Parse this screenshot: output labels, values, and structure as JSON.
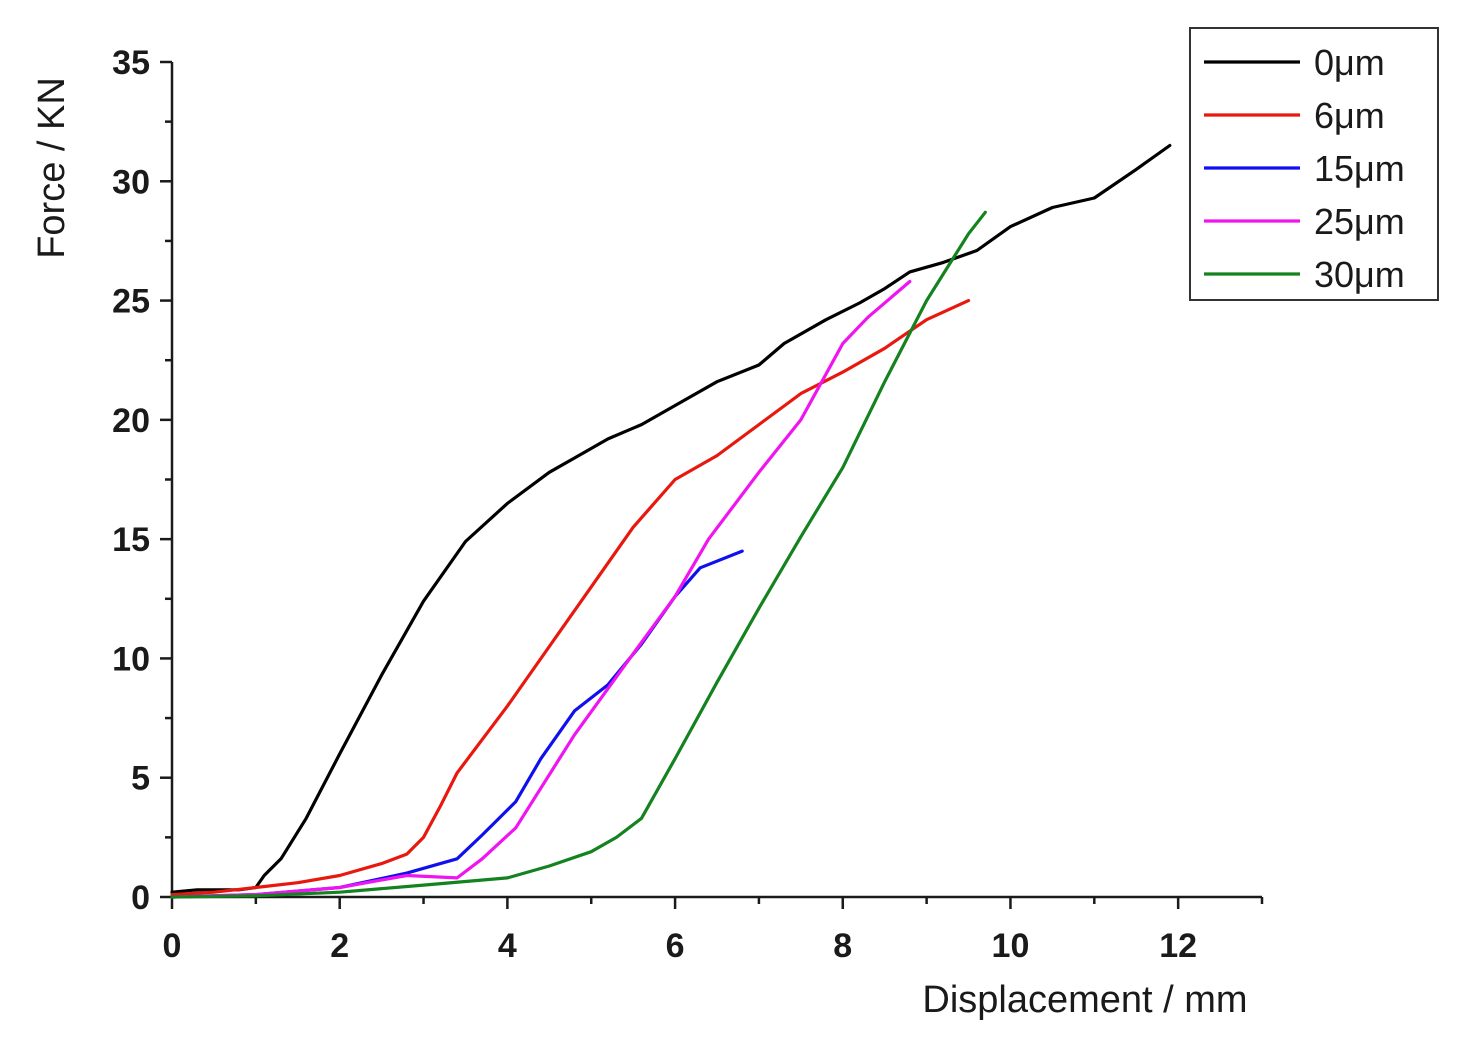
{
  "chart_data": {
    "type": "line",
    "title": "",
    "xlabel": "Displacement / mm",
    "ylabel": "Force / KN",
    "xlim": [
      0,
      13
    ],
    "ylim": [
      0,
      35
    ],
    "xticks": [
      0,
      2,
      4,
      6,
      8,
      10,
      12
    ],
    "yticks": [
      0,
      5,
      10,
      15,
      20,
      25,
      30,
      35
    ],
    "grid": false,
    "legend_position": "top-right",
    "series": [
      {
        "name": "0μm",
        "color": "#000000",
        "x": [
          0,
          0.3,
          0.8,
          1.0,
          1.1,
          1.3,
          1.6,
          2.0,
          2.5,
          3.0,
          3.5,
          4.0,
          4.5,
          4.8,
          5.2,
          5.6,
          6.0,
          6.5,
          7.0,
          7.3,
          7.8,
          8.2,
          8.5,
          8.8,
          9.2,
          9.6,
          10.0,
          10.5,
          11.0,
          11.5,
          11.9
        ],
        "values": [
          0.2,
          0.3,
          0.3,
          0.4,
          0.9,
          1.6,
          3.3,
          6.0,
          9.3,
          12.4,
          14.9,
          16.5,
          17.8,
          18.4,
          19.2,
          19.8,
          20.6,
          21.6,
          22.3,
          23.2,
          24.2,
          24.9,
          25.5,
          26.2,
          26.6,
          27.1,
          28.1,
          28.9,
          29.3,
          30.5,
          31.5
        ]
      },
      {
        "name": "6μm",
        "color": "#e8180f",
        "x": [
          0,
          0.5,
          1.0,
          1.5,
          2.0,
          2.5,
          2.8,
          3.0,
          3.2,
          3.4,
          4.0,
          4.5,
          5.0,
          5.5,
          6.0,
          6.5,
          7.0,
          7.5,
          8.0,
          8.5,
          9.0,
          9.5
        ],
        "values": [
          0.1,
          0.2,
          0.4,
          0.6,
          0.9,
          1.4,
          1.8,
          2.5,
          3.8,
          5.2,
          8.0,
          10.5,
          13.0,
          15.5,
          17.5,
          18.5,
          19.8,
          21.1,
          22.0,
          23.0,
          24.2,
          25.0
        ]
      },
      {
        "name": "15μm",
        "color": "#1010ee",
        "x": [
          0,
          1.0,
          2.0,
          2.8,
          3.4,
          3.7,
          4.1,
          4.4,
          4.8,
          5.2,
          5.6,
          6.0,
          6.3,
          6.8
        ],
        "values": [
          0,
          0.1,
          0.4,
          1.0,
          1.6,
          2.6,
          4.0,
          5.8,
          7.8,
          8.9,
          10.6,
          12.6,
          13.8,
          14.5
        ]
      },
      {
        "name": "25μm",
        "color": "#f014f0",
        "x": [
          0,
          1.0,
          2.0,
          2.8,
          3.4,
          3.7,
          4.1,
          4.8,
          5.5,
          6.0,
          6.4,
          7.0,
          7.5,
          8.0,
          8.3,
          8.8
        ],
        "values": [
          0,
          0.1,
          0.4,
          0.9,
          0.8,
          1.6,
          2.9,
          6.8,
          10.2,
          12.6,
          15.0,
          17.8,
          20.0,
          23.2,
          24.3,
          25.8
        ]
      },
      {
        "name": "30μm",
        "color": "#14821e",
        "x": [
          0,
          1.0,
          2.0,
          3.0,
          4.0,
          4.5,
          5.0,
          5.3,
          5.6,
          6.0,
          6.5,
          7.0,
          7.5,
          8.0,
          8.5,
          9.0,
          9.5,
          9.7
        ],
        "values": [
          0,
          0.05,
          0.2,
          0.5,
          0.8,
          1.3,
          1.9,
          2.5,
          3.3,
          5.8,
          9.0,
          12.1,
          15.1,
          18.0,
          21.6,
          25.0,
          27.8,
          28.7
        ]
      }
    ]
  }
}
